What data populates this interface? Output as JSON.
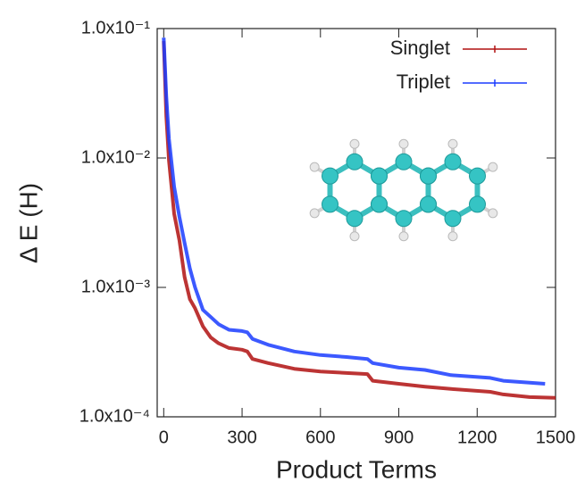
{
  "chart_data": {
    "type": "line",
    "y_label": "Δ E (H)",
    "x_label": "Product Terms",
    "log_y": true,
    "legend": "top-right",
    "xlim": [
      -25,
      1500
    ],
    "ylim": [
      0.0001,
      0.1
    ],
    "xticks": [
      0,
      300,
      600,
      900,
      1200,
      1500
    ],
    "yticks": [
      {
        "value": 0.1,
        "label": "1.0x10⁻¹"
      },
      {
        "value": 0.01,
        "label": "1.0x10⁻²"
      },
      {
        "value": 0.001,
        "label": "1.0x10⁻³"
      },
      {
        "value": 0.0001,
        "label": "1.0x10⁻⁴"
      }
    ],
    "series": [
      {
        "name": "Singlet",
        "color": "#b01010",
        "x": [
          0,
          10,
          20,
          40,
          60,
          80,
          100,
          120,
          150,
          180,
          210,
          250,
          300,
          320,
          340,
          400,
          500,
          600,
          700,
          780,
          800,
          900,
          1000,
          1100,
          1250,
          1300,
          1400,
          1500
        ],
        "values": [
          0.08,
          0.021,
          0.0095,
          0.0037,
          0.0023,
          0.0012,
          0.00081,
          0.00069,
          0.0005,
          0.00041,
          0.00037,
          0.00034,
          0.00033,
          0.00032,
          0.00028,
          0.00026,
          0.000235,
          0.000224,
          0.000218,
          0.000214,
          0.00019,
          0.00018,
          0.000171,
          0.000164,
          0.000156,
          0.000149,
          0.000142,
          0.00014
        ]
      },
      {
        "name": "Triplet",
        "color": "#1a3cff",
        "x": [
          0,
          10,
          20,
          40,
          60,
          80,
          100,
          120,
          150,
          180,
          210,
          250,
          300,
          320,
          340,
          400,
          500,
          600,
          700,
          780,
          800,
          900,
          1000,
          1100,
          1250,
          1300,
          1460
        ],
        "values": [
          0.085,
          0.03,
          0.014,
          0.006,
          0.0035,
          0.0022,
          0.0014,
          0.001,
          0.00067,
          0.00059,
          0.00052,
          0.00047,
          0.00046,
          0.00045,
          0.0004,
          0.00036,
          0.00032,
          0.0003,
          0.00029,
          0.00028,
          0.00026,
          0.00024,
          0.00023,
          0.00021,
          0.0002,
          0.00019,
          0.00018
        ]
      }
    ]
  }
}
